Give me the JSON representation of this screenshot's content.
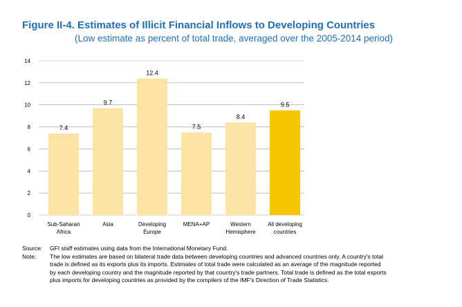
{
  "figure": {
    "title": "Figure II-4. Estimates of Illicit Financial Inflows to Developing Countries",
    "subtitle": "(Low estimate as percent of total trade, averaged over the 2005-2014 period)"
  },
  "chart_data": {
    "type": "bar",
    "categories": [
      [
        "Sub-Saharan",
        "Africa"
      ],
      [
        "Asia"
      ],
      [
        "Developing",
        "Europe"
      ],
      [
        "MENA+AP"
      ],
      [
        "Western",
        "Hemisphere"
      ],
      [
        "All developing",
        "countries"
      ]
    ],
    "values": [
      7.4,
      9.7,
      12.4,
      7.5,
      8.4,
      9.5
    ],
    "value_labels": [
      "7.4",
      "9.7",
      "12.4",
      "7.5",
      "8.4",
      "9.5"
    ],
    "ylim": [
      0,
      14
    ],
    "yticks": [
      0,
      2,
      4,
      6,
      8,
      10,
      12,
      14
    ],
    "grid": true,
    "colors": {
      "regular": "#fbe3a4",
      "highlight": "#f8c600",
      "grid": "#9a9a9a"
    },
    "highlight_index": 5,
    "xlabel": "",
    "ylabel": ""
  },
  "notes": {
    "source_label": "Source:",
    "source_text": "GFI staff estimates using data from the International Monetary Fund.",
    "note_label": "Note:",
    "note_lines": [
      "The low estimates are based on bilateral trade data between developing countries and advanced countries only. A country's total",
      "trade is defined as its exports plus its imports. Estimates of total trade were calculated as an average of the magnitude reported",
      "by each developing country and the magnitude reported by that country's trade partners. Total trade is defined as the total exports",
      "plus imports for developing countries as provided by the compilers of the IMF's Direction of Trade Statistics."
    ]
  }
}
